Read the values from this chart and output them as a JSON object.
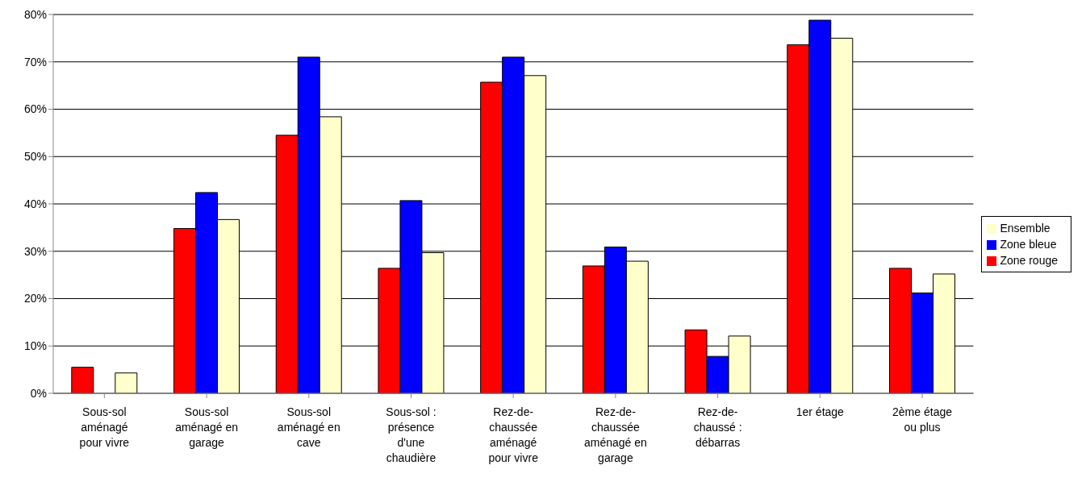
{
  "chart_data": {
    "type": "bar",
    "categories": [
      "Sous-sol aménagé pour vivre",
      "Sous-sol aménagé en garage",
      "Sous-sol aménagé en cave",
      "Sous-sol : présence d'une chaudière",
      "Rez-de-chaussée aménagé pour vivre",
      "Rez-de-chaussée aménagé en garage",
      "Rez-de-chaussé : débarras",
      "1er étage",
      "2ème étage ou plus"
    ],
    "series": [
      {
        "name": "Zone rouge",
        "color": "#ff0000",
        "values": [
          5.5,
          34.8,
          54.5,
          26.4,
          65.7,
          26.9,
          13.4,
          73.6,
          26.4
        ]
      },
      {
        "name": "Zone bleue",
        "color": "#0000ff",
        "values": [
          0,
          42.4,
          71.0,
          40.7,
          71.0,
          30.9,
          7.8,
          78.8,
          21.2
        ]
      },
      {
        "name": "Ensemble",
        "color": "#ffffcc",
        "values": [
          4.3,
          36.7,
          58.4,
          29.7,
          67.1,
          27.9,
          12.1,
          75.0,
          25.2
        ]
      }
    ],
    "ylim": [
      0,
      80
    ],
    "yticks": [
      {
        "value": 0,
        "label": "0%"
      },
      {
        "value": 10,
        "label": "10%"
      },
      {
        "value": 20,
        "label": "20%"
      },
      {
        "value": 30,
        "label": "30%"
      },
      {
        "value": 40,
        "label": "40%"
      },
      {
        "value": 50,
        "label": "50%"
      },
      {
        "value": 60,
        "label": "60%"
      },
      {
        "value": 70,
        "label": "70%"
      },
      {
        "value": 80,
        "label": "80%"
      }
    ],
    "grid": "y",
    "legend": "right"
  }
}
